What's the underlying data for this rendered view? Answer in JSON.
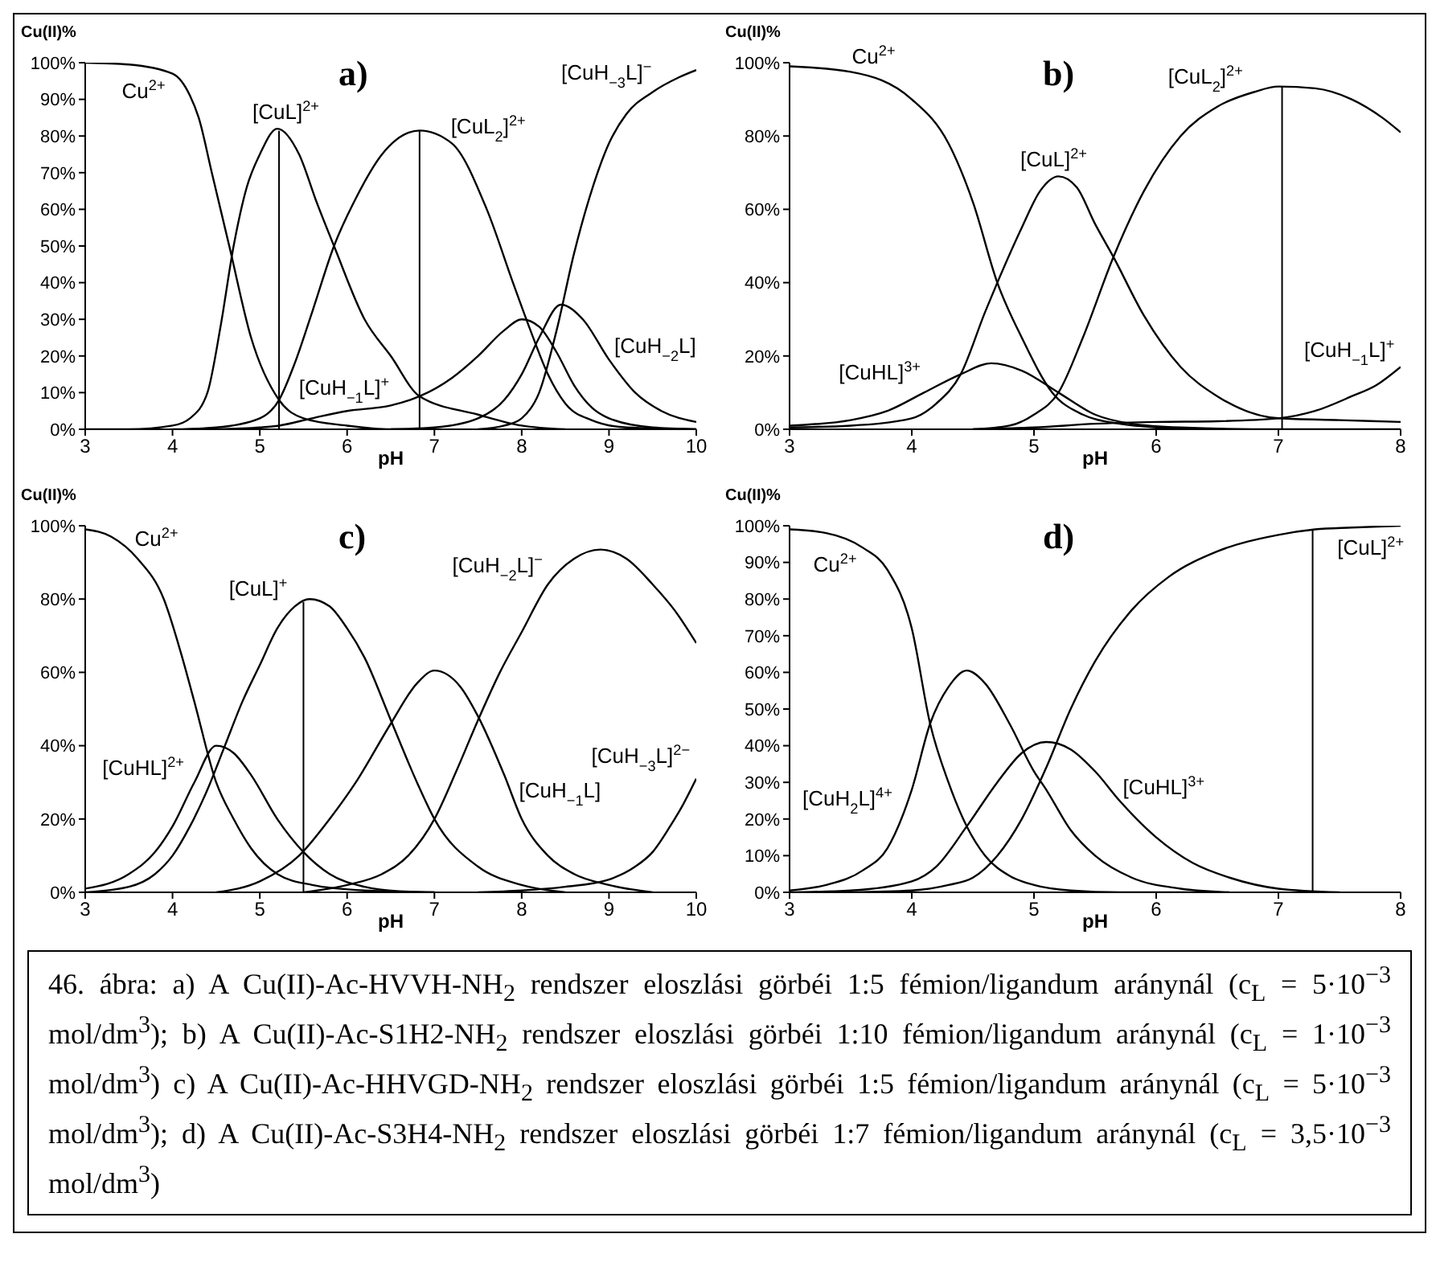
{
  "chart_data": [
    {
      "type": "line",
      "title": "a)",
      "xlabel": "pH",
      "ylabel": "Cu(II)%",
      "marker": "none",
      "xlim": [
        3,
        10
      ],
      "xticks": [
        3,
        4,
        5,
        6,
        7,
        8,
        9,
        10
      ],
      "ylim": [
        0,
        100
      ],
      "yticks": [
        {
          "value": 0,
          "label": "0%"
        },
        {
          "value": 10,
          "label": "10%"
        },
        {
          "value": 20,
          "label": "20%"
        },
        {
          "value": 30,
          "label": "30%"
        },
        {
          "value": 40,
          "label": "40%"
        },
        {
          "value": 50,
          "label": "50%"
        },
        {
          "value": 60,
          "label": "60%"
        },
        {
          "value": 70,
          "label": "70%"
        },
        {
          "value": 80,
          "label": "80%"
        },
        {
          "value": 90,
          "label": "90%"
        },
        {
          "value": 100,
          "label": "100%"
        }
      ],
      "ref_lines": [
        {
          "axis": "x",
          "value": 5.22
        },
        {
          "axis": "x",
          "value": 6.83
        }
      ],
      "series": [
        {
          "name": "Cu$^{2+}$",
          "color": "#000000",
          "x": [
            3,
            3.5,
            4,
            4.2,
            4.3,
            4.45,
            4.65,
            4.9,
            5.22,
            5.5,
            6,
            6.5,
            7
          ],
          "values": [
            100,
            99.5,
            97,
            91,
            85,
            70,
            50,
            25,
            8,
            3,
            1,
            0,
            0
          ]
        },
        {
          "name": "[CuL]$^{2+}$",
          "color": "#000000",
          "x": [
            3,
            3.5,
            4,
            4.2,
            4.4,
            4.55,
            4.7,
            4.85,
            5,
            5.2,
            5.45,
            5.65,
            5.85,
            6.2,
            6.5,
            6.83,
            7.5,
            8,
            8.5
          ],
          "values": [
            0,
            0,
            1,
            3,
            10,
            28,
            50,
            66,
            75,
            82,
            75,
            62,
            50,
            30,
            20,
            9,
            4,
            1,
            0
          ]
        },
        {
          "name": "[CuL$_{2}$]$^{2+}$",
          "color": "#000000",
          "x": [
            4,
            4.5,
            5,
            5.22,
            5.4,
            5.6,
            5.85,
            6.1,
            6.4,
            6.83,
            7.2,
            7.6,
            7.9,
            8.1,
            8.3,
            8.5,
            8.8,
            9.2,
            10
          ],
          "values": [
            0,
            0.5,
            3,
            8,
            18,
            32,
            50,
            63,
            75,
            81.5,
            78,
            60,
            40,
            27,
            15,
            7,
            2.5,
            0.5,
            0
          ]
        },
        {
          "name": "[CuH$_{−1}$L]$^{+}$",
          "color": "#000000",
          "x": [
            4.5,
            5,
            5.22,
            5.6,
            6,
            6.5,
            6.83,
            7.2,
            7.5,
            7.8,
            8,
            8.2,
            8.4,
            8.6,
            8.8,
            9,
            9.5,
            10
          ],
          "values": [
            0,
            0.5,
            1,
            3,
            5,
            6.5,
            9,
            14,
            20,
            27,
            30,
            28,
            21,
            12,
            6,
            3,
            0.5,
            0
          ]
        },
        {
          "name": "[CuH$_{−2}$L]",
          "color": "#000000",
          "x": [
            6.5,
            7,
            7.5,
            7.8,
            8,
            8.2,
            8.45,
            8.7,
            9,
            9.3,
            9.6,
            10
          ],
          "values": [
            0,
            0.5,
            3,
            8,
            15,
            25,
            34,
            30,
            19,
            10,
            5,
            2
          ]
        },
        {
          "name": "[CuH$_{−3}$L]$^{−}$",
          "color": "#000000",
          "x": [
            7.5,
            7.8,
            8,
            8.2,
            8.4,
            8.6,
            8.8,
            9,
            9.2,
            9.5,
            9.8,
            10
          ],
          "values": [
            0,
            1,
            3,
            10,
            27,
            48,
            65,
            78,
            86,
            92,
            96,
            98
          ]
        }
      ]
    },
    {
      "type": "line",
      "title": "b)",
      "xlabel": "pH",
      "ylabel": "Cu(II)%",
      "marker": "none",
      "xlim": [
        3,
        8
      ],
      "xticks": [
        3,
        4,
        5,
        6,
        7,
        8
      ],
      "ylim": [
        0,
        100
      ],
      "yticks": [
        {
          "value": 0,
          "label": "0%"
        },
        {
          "value": 20,
          "label": "20%"
        },
        {
          "value": 40,
          "label": "40%"
        },
        {
          "value": 60,
          "label": "60%"
        },
        {
          "value": 80,
          "label": "80%"
        },
        {
          "value": 100,
          "label": "100%"
        }
      ],
      "ref_lines": [
        {
          "axis": "x",
          "value": 7.03
        }
      ],
      "series": [
        {
          "name": "Cu$^{2+}$",
          "color": "#000000",
          "x": [
            3,
            3.5,
            4,
            4.3,
            4.5,
            4.7,
            4.9,
            5.15,
            5.4,
            5.7,
            6,
            6.5
          ],
          "values": [
            99,
            97.5,
            90,
            78,
            62,
            40,
            25,
            10,
            4,
            1.5,
            0.5,
            0
          ]
        },
        {
          "name": "[CuHL]$^{3+}$",
          "color": "#000000",
          "x": [
            3,
            3.5,
            3.8,
            4.1,
            4.4,
            4.65,
            4.9,
            5.2,
            5.5,
            5.8,
            6.2,
            7,
            8
          ],
          "values": [
            1,
            2.5,
            5,
            10,
            15,
            18,
            16,
            10,
            4,
            1.5,
            0.5,
            0,
            0
          ]
        },
        {
          "name": "[CuL]$^{2+}$",
          "color": "#000000",
          "x": [
            3,
            3.5,
            4,
            4.2,
            4.4,
            4.6,
            4.7,
            4.9,
            5.05,
            5.2,
            5.35,
            5.5,
            5.65,
            5.9,
            6.2,
            6.5,
            7,
            7.5,
            8
          ],
          "values": [
            0.5,
            1,
            3,
            7,
            15,
            32,
            40,
            55,
            65,
            69,
            66,
            56,
            47,
            31,
            17,
            9,
            3,
            2.5,
            2
          ]
        },
        {
          "name": "[CuL$_{2}$]$^{2+}$",
          "color": "#000000",
          "x": [
            4.5,
            4.8,
            5,
            5.2,
            5.4,
            5.65,
            5.9,
            6.2,
            6.5,
            6.8,
            7,
            7.3,
            7.6,
            7.85,
            8
          ],
          "values": [
            0,
            1,
            4,
            10,
            25,
            47,
            65,
            80,
            88,
            92,
            93.5,
            93,
            90,
            85,
            81
          ]
        },
        {
          "name": "[CuH$_{−1}$L]$^{+}$",
          "color": "#000000",
          "x": [
            4.5,
            5,
            5.5,
            6,
            6.5,
            7,
            7.3,
            7.6,
            7.8,
            8
          ],
          "values": [
            0,
            0.5,
            1.5,
            2,
            2.2,
            3,
            5,
            9,
            12,
            17
          ]
        }
      ]
    },
    {
      "type": "line",
      "title": "c)",
      "xlabel": "pH",
      "ylabel": "Cu(II)%",
      "marker": "none",
      "xlim": [
        3,
        10
      ],
      "xticks": [
        3,
        4,
        5,
        6,
        7,
        8,
        9,
        10
      ],
      "ylim": [
        0,
        100
      ],
      "yticks": [
        {
          "value": 0,
          "label": "0%"
        },
        {
          "value": 20,
          "label": "20%"
        },
        {
          "value": 40,
          "label": "40%"
        },
        {
          "value": 60,
          "label": "60%"
        },
        {
          "value": 80,
          "label": "80%"
        },
        {
          "value": 100,
          "label": "100%"
        }
      ],
      "ref_lines": [
        {
          "axis": "x",
          "value": 5.5
        }
      ],
      "series": [
        {
          "name": "Cu$^{2+}$",
          "color": "#000000",
          "x": [
            3,
            3.3,
            3.6,
            3.9,
            4.1,
            4.25,
            4.5,
            4.7,
            4.9,
            5.2,
            5.6,
            6.2,
            7
          ],
          "values": [
            99,
            97,
            91,
            80,
            65,
            52,
            30,
            20,
            12,
            5,
            2,
            0.5,
            0
          ]
        },
        {
          "name": "[CuHL]$^{2+}$",
          "color": "#000000",
          "x": [
            3,
            3.5,
            3.8,
            4,
            4.25,
            4.5,
            4.7,
            4.9,
            5.2,
            5.5,
            5.8,
            6.2,
            6.6,
            7
          ],
          "values": [
            1,
            5,
            11,
            18,
            30,
            40,
            38,
            32,
            20,
            11,
            5,
            1.5,
            0.3,
            0
          ]
        },
        {
          "name": "[CuL]$^{+}$",
          "color": "#000000",
          "x": [
            3,
            3.5,
            3.8,
            4,
            4.2,
            4.4,
            4.6,
            4.8,
            5,
            5.2,
            5.4,
            5.57,
            5.8,
            6,
            6.2,
            6.5,
            6.8,
            7,
            7.5,
            8,
            8.5
          ],
          "values": [
            0,
            1.5,
            5,
            10,
            18,
            28,
            40,
            52,
            62,
            72,
            78,
            80,
            78,
            72,
            64,
            47,
            30,
            20,
            7,
            2,
            0
          ]
        },
        {
          "name": "[CuH$_{−1}$L]",
          "color": "#000000",
          "x": [
            4.5,
            5,
            5.45,
            5.8,
            6.1,
            6.5,
            6.8,
            7,
            7.3,
            7.5,
            7.8,
            8,
            8.3,
            8.6,
            9,
            9.5
          ],
          "values": [
            0,
            3,
            10,
            20,
            30,
            46,
            57,
            60.5,
            56,
            48,
            32,
            20,
            10,
            5,
            2,
            0
          ]
        },
        {
          "name": "[CuH$_{−2}$L]$^{−}$",
          "color": "#000000",
          "x": [
            5.5,
            6,
            6.4,
            6.7,
            7,
            7.25,
            7.5,
            7.75,
            8,
            8.3,
            8.6,
            8.9,
            9.2,
            9.5,
            9.75,
            10
          ],
          "values": [
            0,
            2,
            5,
            10,
            20,
            33,
            47,
            60,
            71,
            84,
            91,
            93.5,
            91,
            84,
            77,
            68
          ]
        },
        {
          "name": "[CuH$_{−3}$L]$^{2−}$",
          "color": "#000000",
          "x": [
            7.5,
            8,
            8.5,
            9,
            9.3,
            9.5,
            9.7,
            9.85,
            10
          ],
          "values": [
            0,
            0.5,
            1.5,
            3.5,
            7,
            11,
            18,
            24,
            31
          ]
        }
      ]
    },
    {
      "type": "line",
      "title": "d)",
      "xlabel": "pH",
      "ylabel": "Cu(II)%",
      "marker": "none",
      "xlim": [
        3,
        8
      ],
      "xticks": [
        3,
        4,
        5,
        6,
        7,
        8
      ],
      "ylim": [
        0,
        100
      ],
      "yticks": [
        {
          "value": 0,
          "label": "0%"
        },
        {
          "value": 10,
          "label": "10%"
        },
        {
          "value": 20,
          "label": "20%"
        },
        {
          "value": 30,
          "label": "30%"
        },
        {
          "value": 40,
          "label": "40%"
        },
        {
          "value": 50,
          "label": "50%"
        },
        {
          "value": 60,
          "label": "60%"
        },
        {
          "value": 70,
          "label": "70%"
        },
        {
          "value": 80,
          "label": "80%"
        },
        {
          "value": 90,
          "label": "90%"
        },
        {
          "value": 100,
          "label": "100%"
        }
      ],
      "ref_lines": [
        {
          "axis": "x",
          "value": 7.28
        }
      ],
      "series": [
        {
          "name": "Cu$^{2+}$",
          "color": "#000000",
          "x": [
            3,
            3.3,
            3.6,
            3.8,
            4,
            4.15,
            4.3,
            4.45,
            4.6,
            4.8,
            5,
            5.3,
            5.7,
            6.5
          ],
          "values": [
            99,
            98,
            94,
            88,
            72,
            46,
            30,
            18,
            10,
            4.5,
            2,
            0.5,
            0,
            0
          ]
        },
        {
          "name": "[CuH$_{2}$L]$^{4+}$",
          "color": "#000000",
          "x": [
            3,
            3.3,
            3.6,
            3.8,
            4,
            4.15,
            4.3,
            4.45,
            4.6,
            4.8,
            5,
            5.1,
            5.3,
            5.5,
            5.8,
            6.2,
            6.6
          ],
          "values": [
            0.5,
            2,
            6,
            12,
            28,
            46,
            56,
            60.5,
            57,
            46,
            33,
            28,
            17,
            10,
            4,
            1,
            0
          ]
        },
        {
          "name": "[CuHL]$^{3+}$",
          "color": "#000000",
          "x": [
            3,
            3.5,
            4,
            4.2,
            4.45,
            4.7,
            4.9,
            5.1,
            5.3,
            5.5,
            5.7,
            6,
            6.3,
            6.6,
            7,
            7.5
          ],
          "values": [
            0,
            0.5,
            3,
            7,
            18,
            30,
            38,
            41,
            39,
            33,
            25,
            15,
            8,
            4,
            1,
            0
          ]
        },
        {
          "name": "[CuL]$^{2+}$",
          "color": "#000000",
          "x": [
            3.5,
            4,
            4.3,
            4.5,
            4.7,
            4.9,
            5.1,
            5.3,
            5.5,
            5.8,
            6.1,
            6.5,
            7,
            7.3,
            7.6,
            8
          ],
          "values": [
            0,
            0.5,
            2,
            4,
            10,
            20,
            34,
            50,
            63,
            77,
            86,
            93,
            97.5,
            99,
            99.5,
            100
          ]
        }
      ],
      "annotations": [
        "46. ábra: a) A Cu(II)-Ac-HVVH-NH$_{2}$ rendszer eloszlási görbéi 1:5 fémion/ligandum aránynál (c$_{L}$ = 5·10$^{−3}$ mol/dm$^{3}$); b) A Cu(II)-Ac-S1H2-NH$_{2}$ rendszer eloszlási görbéi 1:10 fémion/ligandum aránynál (c$_{L}$ = 1·10$^{−3}$ mol/dm$^{3}$) c) A Cu(II)-Ac-HHVGD-NH$_{2}$ rendszer eloszlási görbéi 1:5 fémion/ligandum aránynál (c$_{L}$ = 5·10$^{−3}$ mol/dm$^{3}$); d) A Cu(II)-Ac-S3H4-NH$_{2}$ rendszer eloszlási görbéi 1:7 fémion/ligandum aránynál (c$_{L}$ = 3,5·10$^{−3}$ mol/dm$^{3}$)"
      ]
    }
  ]
}
